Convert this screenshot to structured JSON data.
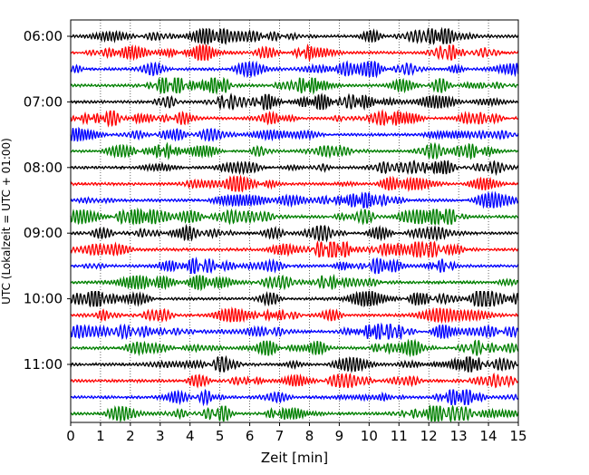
{
  "chart_data": {
    "type": "line",
    "title": "",
    "xlabel": "Zeit  [min]",
    "ylabel": "UTC (Lokalzeit = UTC + 01:00)",
    "xlim": [
      0,
      15
    ],
    "x_ticks": [
      0,
      1,
      2,
      3,
      4,
      5,
      6,
      7,
      8,
      9,
      10,
      11,
      12,
      13,
      14,
      15
    ],
    "y_tick_labels": [
      "06:00",
      "07:00",
      "08:00",
      "09:00",
      "10:00",
      "11:00"
    ],
    "y_tick_rows": [
      0,
      4,
      8,
      12,
      16,
      20
    ],
    "trace_count": 24,
    "trace_interval_minutes": 15,
    "start_time": "06:00",
    "trace_colors": [
      "#000000",
      "#ff0000",
      "#0000ff",
      "#008000"
    ],
    "grid": {
      "vertical": true,
      "style": "dotted"
    }
  }
}
